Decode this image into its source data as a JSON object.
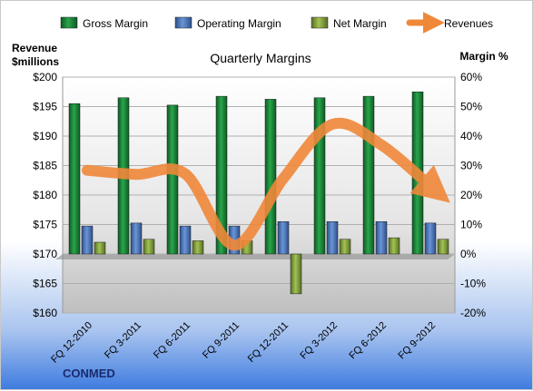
{
  "chart_data": {
    "type": "bar",
    "title": "Quarterly Margins",
    "ylabel_left": [
      "Revenue",
      "$millions"
    ],
    "ylabel_right": "Margin %",
    "company": "CONMED",
    "categories": [
      "FQ 12-2010",
      "FQ 3-2011",
      "FQ 6-2011",
      "FQ 9-2011",
      "FQ 12-2011",
      "FQ 3-2012",
      "FQ 6-2012",
      "FQ 9-2012"
    ],
    "left_axis": {
      "ylim": [
        160,
        200
      ],
      "ticks": [
        160,
        165,
        170,
        175,
        180,
        185,
        190,
        195,
        200
      ],
      "tick_labels": [
        "$160",
        "$165",
        "$170",
        "$175",
        "$180",
        "$185",
        "$190",
        "$195",
        "$200"
      ]
    },
    "right_axis": {
      "ylim": [
        -20,
        60
      ],
      "ticks": [
        -20,
        -10,
        0,
        10,
        20,
        30,
        40,
        50,
        60
      ],
      "tick_labels": [
        "-20%",
        "-10%",
        "0%",
        "10%",
        "20%",
        "30%",
        "40%",
        "50%",
        "60%"
      ]
    },
    "series": [
      {
        "name": "Gross Margin",
        "kind": "bar",
        "axis": "right",
        "color": "#1f8a3c",
        "values": [
          51,
          53,
          50.5,
          53.5,
          52.5,
          53,
          53.5,
          55
        ]
      },
      {
        "name": "Operating Margin",
        "kind": "bar",
        "axis": "right",
        "color": "#4a78c0",
        "values": [
          9.5,
          10.5,
          9.5,
          9.5,
          11,
          11,
          11,
          10.5
        ]
      },
      {
        "name": "Net Margin",
        "kind": "bar",
        "axis": "right",
        "color": "#7fa03a",
        "values": [
          4,
          5,
          4.5,
          4.5,
          -13.5,
          5,
          5.5,
          5
        ]
      },
      {
        "name": "Revenues",
        "kind": "line",
        "axis": "left",
        "color": "#f0883a",
        "values": [
          184.2,
          183.5,
          183.6,
          171.5,
          182.8,
          192,
          188.5,
          181.5
        ]
      }
    ],
    "legend_position": "top",
    "grid": true
  }
}
